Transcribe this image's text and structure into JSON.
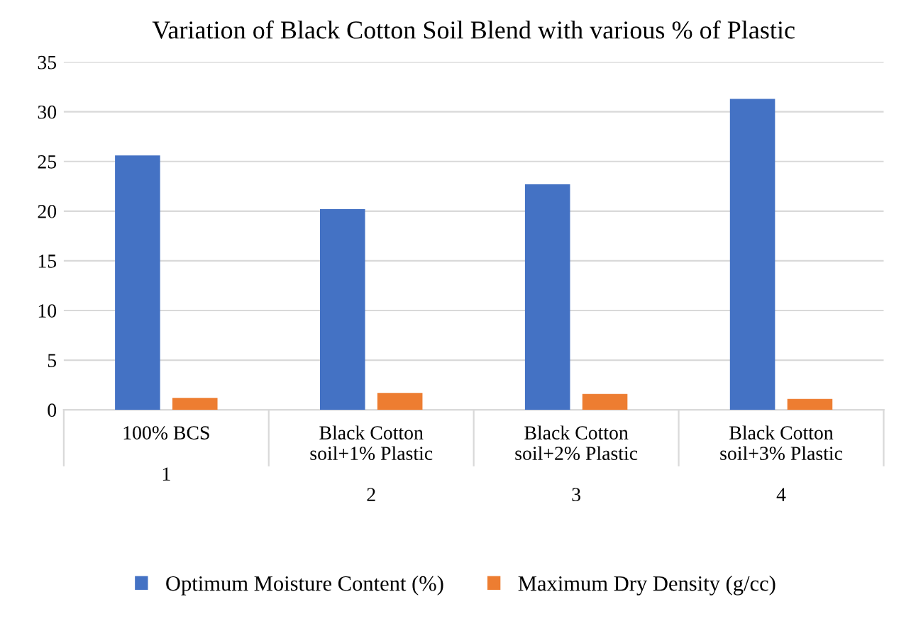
{
  "chart_data": {
    "type": "bar",
    "title": "Variation of Black Cotton Soil Blend with various % of Plastic",
    "categories": [
      "100% BCS\n\n1",
      "Black Cotton\nsoil+1% Plastic\n\n2",
      "Black Cotton\nsoil+2% Plastic\n\n3",
      "Black Cotton\nsoil+3% Plastic\n\n4"
    ],
    "series": [
      {
        "name": "Optimum Moisture Content (%)",
        "color": "#4472c4",
        "values": [
          25.6,
          20.2,
          22.7,
          31.3
        ]
      },
      {
        "name": "Maximum Dry Density (g/cc)",
        "color": "#ed7d31",
        "values": [
          1.2,
          1.7,
          1.6,
          1.1
        ]
      }
    ],
    "ylim": [
      0,
      35
    ],
    "yticks": [
      0,
      5,
      10,
      15,
      20,
      25,
      30,
      35
    ],
    "grid": "y",
    "legend": "bottom"
  }
}
